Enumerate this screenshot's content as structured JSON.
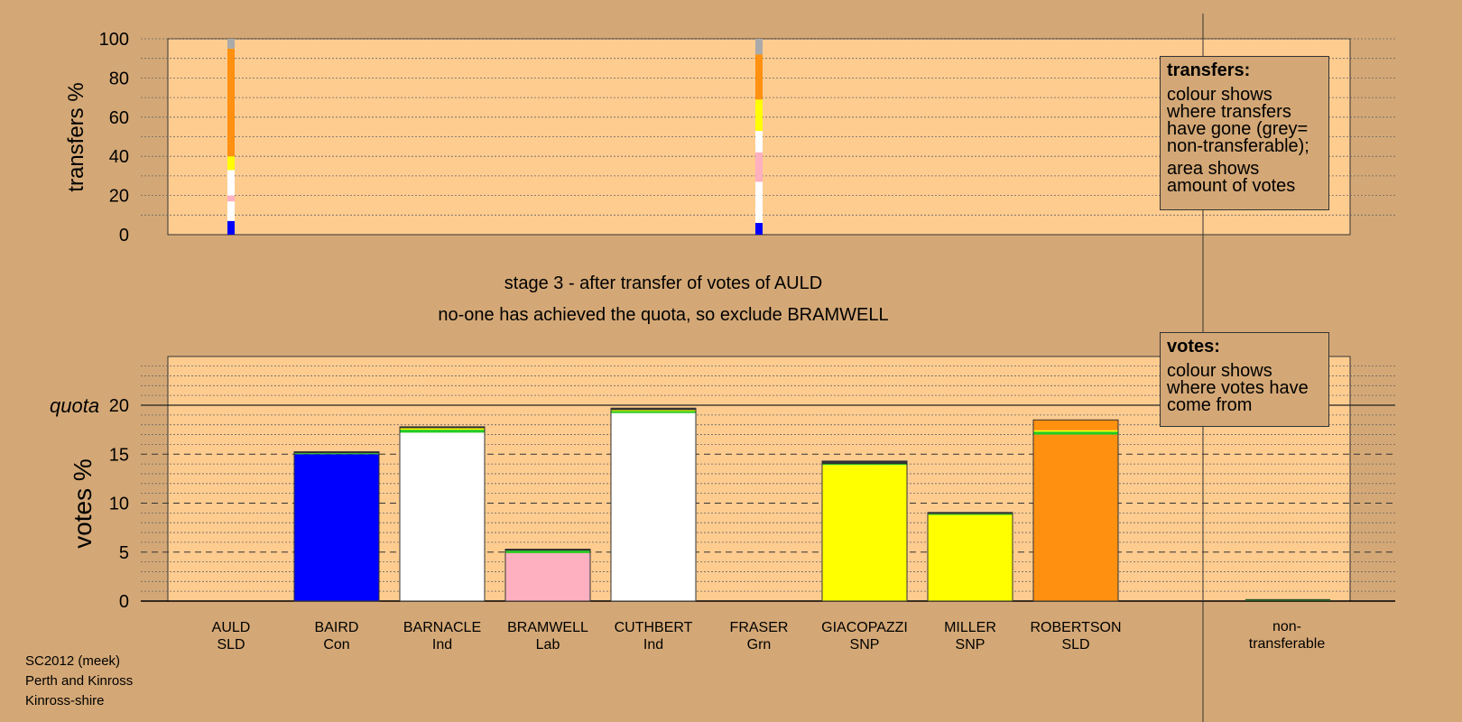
{
  "chart_data": [
    {
      "type": "bar",
      "stacked": true,
      "ylabel": "transfers %",
      "ylim": [
        0,
        100
      ],
      "yticks": [
        0,
        20,
        40,
        60,
        80,
        100
      ],
      "grid": true,
      "legend": {
        "title": "transfers:",
        "lines": [
          "colour shows where transfers have gone (grey= non-transferable);",
          "area shows amount of votes"
        ]
      },
      "columns": [
        {
          "category": "AULD",
          "segments": [
            {
              "color": "#0000ff",
              "value": 7
            },
            {
              "color": "#ffffff",
              "value": 10
            },
            {
              "color": "#ffb0c0",
              "value": 3
            },
            {
              "color": "#ffffff",
              "value": 13
            },
            {
              "color": "#ffff00",
              "value": 7
            },
            {
              "color": "#ff9010",
              "value": 55
            },
            {
              "color": "#aaaaaa",
              "value": 5
            }
          ]
        },
        {
          "category": "FRASER",
          "segments": [
            {
              "color": "#0000ff",
              "value": 6
            },
            {
              "color": "#ffffff",
              "value": 21
            },
            {
              "color": "#ffb0c0",
              "value": 15
            },
            {
              "color": "#ffffff",
              "value": 11
            },
            {
              "color": "#ffff00",
              "value": 16
            },
            {
              "color": "#ff9010",
              "value": 23
            },
            {
              "color": "#aaaaaa",
              "value": 8
            }
          ]
        }
      ]
    },
    {
      "type": "bar",
      "stacked": true,
      "title": "stage 3 - after transfer of votes of AULD",
      "subtitle": "no-one has achieved the quota, so exclude BRAMWELL",
      "ylabel": "votes %",
      "ylim": [
        0,
        25
      ],
      "yticks": [
        0,
        5,
        10,
        15,
        20
      ],
      "quota": 20,
      "quota_label": "quota",
      "grid": true,
      "legend": {
        "title": "votes:",
        "lines": [
          "colour shows where votes have come from"
        ]
      },
      "categories": [
        {
          "name": "AULD",
          "party": "SLD",
          "segments": []
        },
        {
          "name": "BAIRD",
          "party": "Con",
          "segments": [
            {
              "color": "#0000ff",
              "value": 15.0
            },
            {
              "color": "#22cc22",
              "value": 0.1
            },
            {
              "color": "#333333",
              "value": 0.15
            }
          ]
        },
        {
          "name": "BARNACLE",
          "party": "Ind",
          "segments": [
            {
              "color": "#ffffff",
              "value": 17.2
            },
            {
              "color": "#22cc22",
              "value": 0.3
            },
            {
              "color": "#ffff00",
              "value": 0.15
            },
            {
              "color": "#333333",
              "value": 0.15
            }
          ]
        },
        {
          "name": "BRAMWELL",
          "party": "Lab",
          "segments": [
            {
              "color": "#ffb0c0",
              "value": 4.9
            },
            {
              "color": "#22cc22",
              "value": 0.25
            },
            {
              "color": "#333333",
              "value": 0.15
            }
          ]
        },
        {
          "name": "CUTHBERT",
          "party": "Ind",
          "segments": [
            {
              "color": "#ffffff",
              "value": 19.2
            },
            {
              "color": "#22cc22",
              "value": 0.2
            },
            {
              "color": "#ffff00",
              "value": 0.1
            },
            {
              "color": "#333333",
              "value": 0.2
            }
          ]
        },
        {
          "name": "FRASER",
          "party": "Grn",
          "segments": []
        },
        {
          "name": "GIACOPAZZI",
          "party": "SNP",
          "segments": [
            {
              "color": "#ffff00",
              "value": 13.9
            },
            {
              "color": "#22cc22",
              "value": 0.1
            },
            {
              "color": "#333333",
              "value": 0.3
            }
          ]
        },
        {
          "name": "MILLER",
          "party": "SNP",
          "segments": [
            {
              "color": "#ffff00",
              "value": 8.8
            },
            {
              "color": "#22cc22",
              "value": 0.1
            },
            {
              "color": "#333333",
              "value": 0.15
            }
          ]
        },
        {
          "name": "ROBERTSON",
          "party": "SLD",
          "segments": [
            {
              "color": "#ff9010",
              "value": 17.0
            },
            {
              "color": "#22cc22",
              "value": 0.3
            },
            {
              "color": "#ffff00",
              "value": 0.15
            },
            {
              "color": "#ff9010",
              "value": 1.05
            }
          ]
        }
      ],
      "nontransferable": {
        "label": [
          "non-",
          "transferable"
        ],
        "value": 0.2,
        "color": "#2a5a2a"
      }
    }
  ],
  "footer": {
    "line1": "SC2012 (meek)",
    "line2": "Perth and Kinross",
    "line3": "Kinross-shire"
  }
}
